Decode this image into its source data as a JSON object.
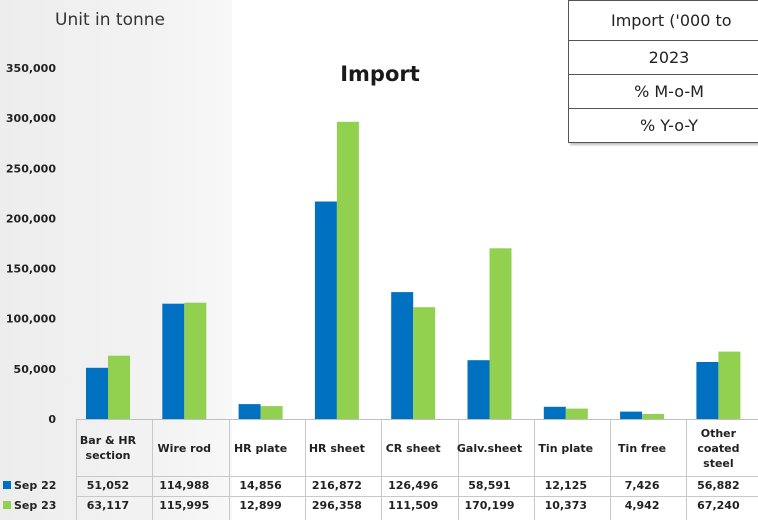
{
  "unit_label": "Unit in tonne",
  "colors": {
    "sep22": "#0070c0",
    "sep23": "#92d050",
    "axis": "#bfbfbf"
  },
  "summary_table": {
    "header": "Import ('000 to",
    "rows": [
      "2023",
      "% M-o-M",
      "% Y-o-Y"
    ]
  },
  "chart_data": {
    "type": "bar",
    "title": "Import",
    "xlabel": "",
    "ylabel": "",
    "ylim": [
      0,
      350000
    ],
    "yticks": [
      0,
      50000,
      100000,
      150000,
      200000,
      250000,
      300000,
      350000
    ],
    "ytick_labels": [
      "0",
      "50,000",
      "100,000",
      "150,000",
      "200,000",
      "250,000",
      "300,000",
      "350,000"
    ],
    "grid": false,
    "legend": "data-table",
    "categories": [
      [
        "Bar & HR",
        "section"
      ],
      [
        "Wire rod"
      ],
      [
        "HR plate"
      ],
      [
        "HR sheet"
      ],
      [
        "CR sheet"
      ],
      [
        "Galv.sheet"
      ],
      [
        "Tin plate"
      ],
      [
        "Tin free"
      ],
      [
        "Other",
        "coated",
        "steel"
      ]
    ],
    "series": [
      {
        "name": "Sep 22",
        "color": "#0070c0",
        "values": [
          51052,
          114988,
          14856,
          216872,
          126496,
          58591,
          12125,
          7426,
          56882
        ],
        "labels": [
          "51,052",
          "114,988",
          "14,856",
          "216,872",
          "126,496",
          "58,591",
          "12,125",
          "7,426",
          "56,882"
        ]
      },
      {
        "name": "Sep 23",
        "color": "#92d050",
        "values": [
          63117,
          115995,
          12899,
          296358,
          111509,
          170199,
          10373,
          4942,
          67240
        ],
        "labels": [
          "63,117",
          "115,995",
          "12,899",
          "296,358",
          "111,509",
          "170,199",
          "10,373",
          "4,942",
          "67,240"
        ]
      }
    ]
  }
}
